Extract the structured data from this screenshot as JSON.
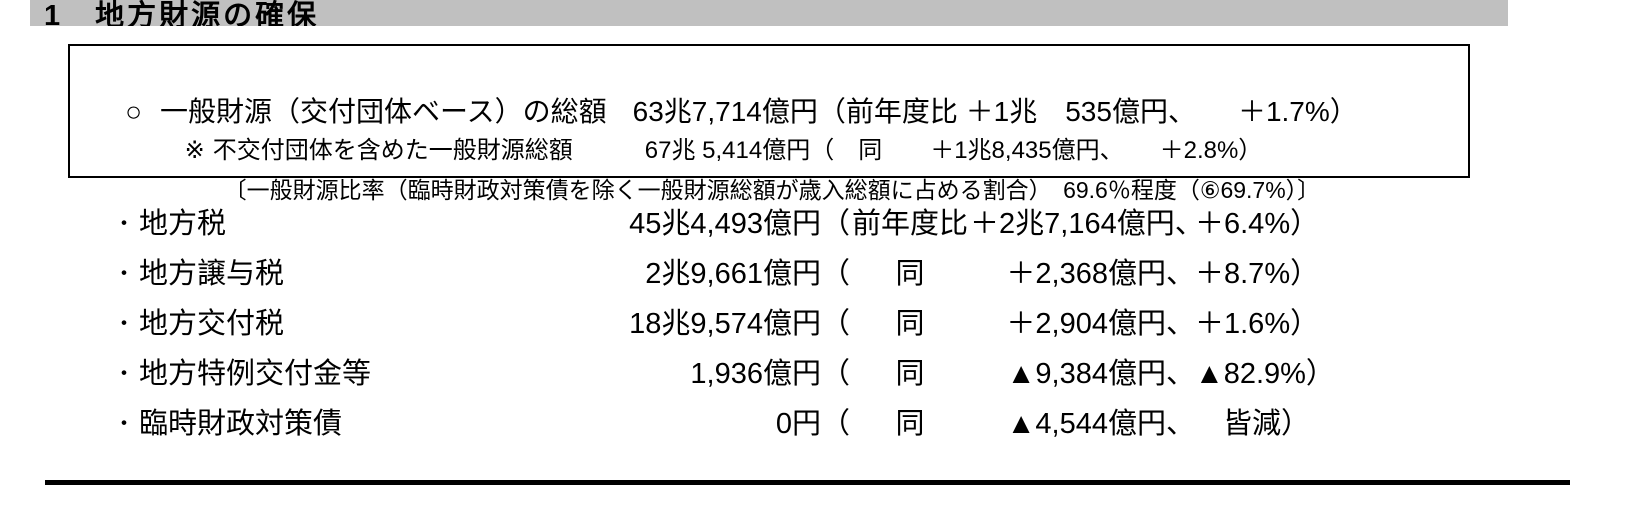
{
  "colors": {
    "header_bg": "#c0c0c0",
    "border": "#000000",
    "text": "#000000",
    "page_bg": "#ffffff"
  },
  "header": {
    "title": "1　地方財源の確保"
  },
  "summary_box": {
    "line1": {
      "marker": "○",
      "label": "一般財源（交付団体ベース）の総額",
      "amount": "63兆7,714億円（前年度比 ＋1兆　535億円、　　＋1.7%）"
    },
    "line2": {
      "marker": "※",
      "label": "不交付団体を含めた一般財源総額",
      "amount": "67兆 5,414億円（　同　　＋1兆8,435億円、　　＋2.8%）"
    },
    "line3": {
      "text": "〔一般財源比率（臨時財政対策債を除く一般財源総額が歳入総額に占める割合）　69.6％程度（⑥69.7%）〕"
    }
  },
  "items": [
    {
      "bullet": "・",
      "label": "地方税",
      "amount": "45兆4,493億円（",
      "comparator": "前年度比",
      "change": "＋2兆7,164億円、",
      "pct": "＋6.4%）"
    },
    {
      "bullet": "・",
      "label": "地方譲与税",
      "amount": "2兆9,661億円（",
      "comparator": "同",
      "change": "＋2,368億円、",
      "pct": "＋8.7%）"
    },
    {
      "bullet": "・",
      "label": "地方交付税",
      "amount": "18兆9,574億円（",
      "comparator": "同",
      "change": "＋2,904億円、",
      "pct": "＋1.6%）"
    },
    {
      "bullet": "・",
      "label": "地方特例交付金等",
      "amount": "1,936億円（",
      "comparator": "同",
      "change": "▲9,384億円、",
      "pct": "▲82.9%）"
    },
    {
      "bullet": "・",
      "label": "臨時財政対策債",
      "amount": "0円（",
      "comparator": "同",
      "change": "▲4,544億円、",
      "pct": "皆減）"
    }
  ]
}
